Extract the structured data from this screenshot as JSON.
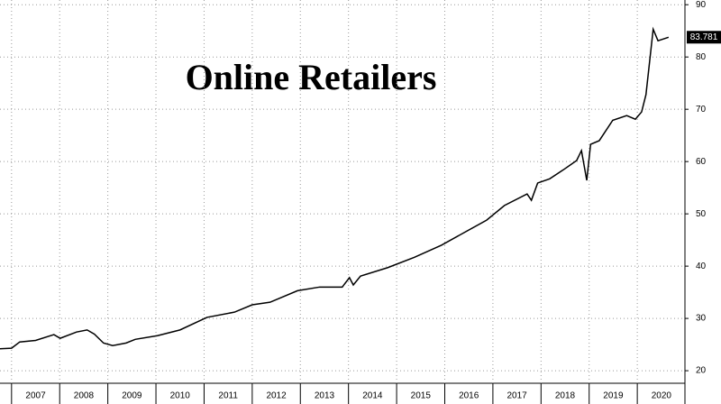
{
  "chart_data": {
    "type": "line",
    "title": "Online Retailers",
    "x": [
      2006.76,
      2007.0,
      2007.17,
      2007.5,
      2007.88,
      2008.01,
      2008.35,
      2008.57,
      2008.72,
      2008.91,
      2009.1,
      2009.38,
      2009.57,
      2010.03,
      2010.5,
      2011.06,
      2011.63,
      2012.0,
      2012.37,
      2012.94,
      2013.4,
      2013.87,
      2014.02,
      2014.1,
      2014.25,
      2014.81,
      2015.37,
      2015.93,
      2016.4,
      2016.87,
      2017.24,
      2017.71,
      2017.8,
      2017.93,
      2018.18,
      2018.46,
      2018.74,
      2018.84,
      2018.95,
      2019.03,
      2019.21,
      2019.49,
      2019.78,
      2019.96,
      2020.09,
      2020.18,
      2020.33,
      2020.43,
      2020.65
    ],
    "values": [
      24.2,
      24.3,
      25.5,
      25.8,
      26.9,
      26.2,
      27.4,
      27.8,
      27,
      25.3,
      24.8,
      25.3,
      26,
      26.7,
      27.8,
      30.2,
      31.2,
      32.6,
      33.1,
      35.3,
      36,
      36,
      37.8,
      36.4,
      38.1,
      39.7,
      41.7,
      44,
      46.4,
      48.8,
      51.6,
      53.8,
      52.6,
      55.9,
      56.7,
      58.4,
      60.2,
      62.1,
      56.4,
      63.3,
      64,
      67.9,
      68.8,
      68.1,
      69.5,
      72.8,
      85.3,
      83.1,
      83.781
    ],
    "color": "#000000",
    "xlim": [
      2006.76,
      2020.99
    ],
    "xticks": [
      2007,
      2008,
      2009,
      2010,
      2011,
      2012,
      2013,
      2014,
      2015,
      2016,
      2017,
      2018,
      2019,
      2020
    ],
    "ylim": [
      17.6,
      90.9
    ],
    "yticks": [
      20,
      30,
      40,
      50,
      60,
      70,
      80,
      90
    ],
    "grid": true
  }
}
